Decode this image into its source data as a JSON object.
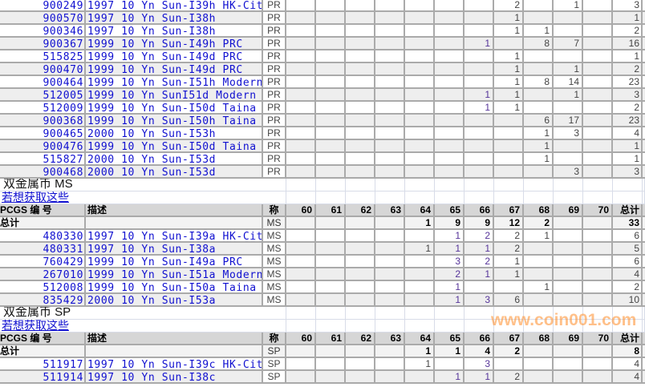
{
  "grades": [
    "60",
    "61",
    "62",
    "63",
    "64",
    "65",
    "66",
    "67",
    "68",
    "69",
    "70"
  ],
  "header": {
    "pcgs": "PCGS 编 号",
    "desc": "描述",
    "grade": "称",
    "total": "总计"
  },
  "total_label": "总计",
  "link_text": "若想获取这些",
  "watermark": "www.coin001.com",
  "pr_rows": [
    {
      "pcgs": "900249",
      "desc": "1997 10 Yn Sun-I39h HK-City",
      "grade": "PR",
      "counts": {
        "67": "2",
        "69": "1"
      },
      "total": "3"
    },
    {
      "pcgs": "900570",
      "desc": "1997 10 Yn Sun-I38h",
      "grade": "PR",
      "counts": {
        "67": "1"
      },
      "total": "1"
    },
    {
      "pcgs": "900346",
      "desc": "1997 10 Yn Sun-I38h",
      "grade": "PR",
      "counts": {
        "67": "1",
        "68": "1"
      },
      "total": "2"
    },
    {
      "pcgs": "900367",
      "desc": "1999 10 Yn Sun-I49h PRC",
      "grade": "PR",
      "counts": {
        "66": "1",
        "68": "8",
        "69": "7"
      },
      "total": "16"
    },
    {
      "pcgs": "515825",
      "desc": "1999 10 Yn Sun-I49d PRC",
      "grade": "PR",
      "counts": {
        "67": "1"
      },
      "total": "1"
    },
    {
      "pcgs": "900470",
      "desc": "1999 10 Yn Sun-I49d PRC",
      "grade": "PR",
      "counts": {
        "67": "1",
        "69": "1"
      },
      "total": "2"
    },
    {
      "pcgs": "900464",
      "desc": "1999 10 Yn Sun-I51h Modern",
      "grade": "PR",
      "counts": {
        "67": "1",
        "68": "8",
        "69": "14"
      },
      "total": "23"
    },
    {
      "pcgs": "512005",
      "desc": "1999 10 Yn SunI51d Modern",
      "grade": "PR",
      "counts": {
        "66": "1",
        "67": "1",
        "69": "1"
      },
      "total": "3"
    },
    {
      "pcgs": "512009",
      "desc": "1999 10 Yn Sun-I50d Taina",
      "grade": "PR",
      "counts": {
        "66": "1",
        "67": "1"
      },
      "total": "2"
    },
    {
      "pcgs": "900368",
      "desc": "1999 10 Yn Sun-I50h Taina",
      "grade": "PR",
      "counts": {
        "68": "6",
        "69": "17"
      },
      "total": "23"
    },
    {
      "pcgs": "900465",
      "desc": "2000 10 Yn Sun-I53h",
      "grade": "PR",
      "counts": {
        "68": "1",
        "69": "3"
      },
      "total": "4"
    },
    {
      "pcgs": "900476",
      "desc": "1999 10 Yn Sun-I50d Taina",
      "grade": "PR",
      "counts": {
        "68": "1"
      },
      "total": "1"
    },
    {
      "pcgs": "515827",
      "desc": "2000 10 Yn Sun-I53d",
      "grade": "PR",
      "counts": {
        "68": "1"
      },
      "total": "1"
    },
    {
      "pcgs": "900468",
      "desc": "2000 10 Yn Sun-I53d",
      "grade": "PR",
      "counts": {
        "69": "3"
      },
      "total": "3"
    }
  ],
  "sections": [
    {
      "title": "双金属币  MS",
      "grade": "MS",
      "totals": {
        "counts": {
          "64": "1",
          "65": "9",
          "66": "9",
          "67": "12",
          "68": "2"
        },
        "total": "33"
      },
      "rows": [
        {
          "pcgs": "480330",
          "desc": "1997 10 Yn Sun-I39a HK-City",
          "grade": "MS",
          "counts": {
            "65": "1",
            "66": "2",
            "67": "2",
            "68": "1"
          },
          "total": "6"
        },
        {
          "pcgs": "480331",
          "desc": "1997 10 Yn Sun-I38a",
          "grade": "MS",
          "counts": {
            "64": "1",
            "65": "1",
            "66": "1",
            "67": "2"
          },
          "total": "5"
        },
        {
          "pcgs": "760429",
          "desc": "1999 10 Yn Sun-I49a PRC",
          "grade": "MS",
          "counts": {
            "65": "3",
            "66": "2",
            "67": "1"
          },
          "total": "6"
        },
        {
          "pcgs": "267010",
          "desc": "1999 10 Yn Sun-I51a Modern",
          "grade": "MS",
          "counts": {
            "65": "2",
            "66": "1",
            "67": "1"
          },
          "total": "4"
        },
        {
          "pcgs": "512008",
          "desc": "1999 10 Yn Sun-I50a Taina",
          "grade": "MS",
          "counts": {
            "65": "1",
            "68": "1"
          },
          "total": "2"
        },
        {
          "pcgs": "835429",
          "desc": "2000 10 Yn Sun-I53a",
          "grade": "MS",
          "counts": {
            "65": "1",
            "66": "3",
            "67": "6"
          },
          "total": "10"
        }
      ]
    },
    {
      "title": "双金属币  SP",
      "grade": "SP",
      "totals": {
        "counts": {
          "64": "1",
          "65": "1",
          "66": "4",
          "67": "2"
        },
        "total": "8"
      },
      "rows": [
        {
          "pcgs": "511917",
          "desc": "1997 10 Yn Sun-I39c HK-City",
          "grade": "SP",
          "counts": {
            "64": "1",
            "66": "3"
          },
          "total": "4"
        },
        {
          "pcgs": "511914",
          "desc": "1997 10 Yn Sun-I38c",
          "grade": "SP",
          "counts": {
            "65": "1",
            "66": "1",
            "67": "2"
          },
          "total": "4"
        }
      ]
    }
  ]
}
